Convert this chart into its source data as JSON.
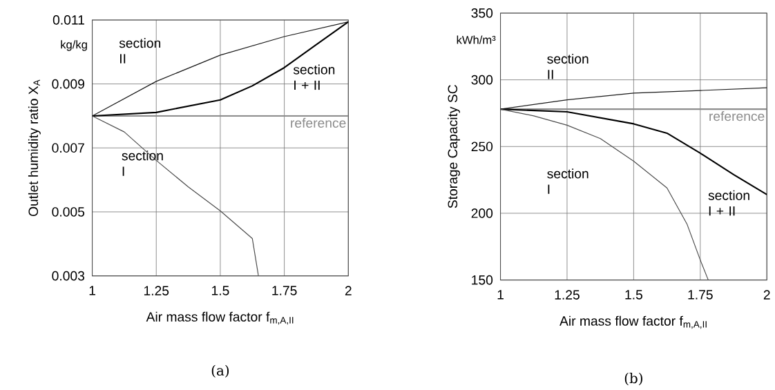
{
  "chart_data": [
    {
      "type": "line",
      "xlabel": "Air mass flow factor f$_{m,A,II}$",
      "ylabel": "Outlet humidity ratio X$_{A}$",
      "annotations": [
        "kg/kg",
        "(a)"
      ],
      "xlim": [
        1,
        2
      ],
      "ylim": [
        0.003,
        0.011
      ],
      "xticks": [
        1,
        1.25,
        1.5,
        1.75,
        2
      ],
      "yticks": [
        0.003,
        0.005,
        0.007,
        0.009,
        0.011
      ],
      "grid": true,
      "line_style": "solid",
      "ref_lines": [
        {
          "axis": "y",
          "value": 0.008,
          "label": "reference",
          "color": "#8c8c8c"
        }
      ],
      "series": [
        {
          "name": "section II",
          "color": "#1a1a1a",
          "x": [
            1,
            1.25,
            1.5,
            1.75,
            2
          ],
          "values": [
            0.008,
            0.00908,
            0.0099,
            0.01048,
            0.01094
          ]
        },
        {
          "name": "section I + II",
          "color": "#000000",
          "x": [
            1,
            1.25,
            1.5,
            1.625,
            1.75,
            1.875,
            2
          ],
          "values": [
            0.008,
            0.00811,
            0.0085,
            0.00894,
            0.00951,
            0.01023,
            0.01094
          ]
        },
        {
          "name": "section I",
          "color": "#4d4d4d",
          "x": [
            1,
            1.125,
            1.25,
            1.375,
            1.5,
            1.625,
            1.649
          ],
          "values": [
            0.008,
            0.0075,
            0.00661,
            0.00578,
            0.00503,
            0.00417,
            0.003
          ]
        }
      ]
    },
    {
      "type": "line",
      "xlabel": "Air mass flow factor f$_{m,A,II}$",
      "ylabel": "Storage Capacity SC",
      "annotations": [
        "kWh/m³",
        "(b)"
      ],
      "xlim": [
        1,
        2
      ],
      "ylim": [
        150,
        350
      ],
      "xticks": [
        1,
        1.25,
        1.5,
        1.75,
        2
      ],
      "yticks": [
        150,
        200,
        250,
        300,
        350
      ],
      "grid": true,
      "line_style": "solid",
      "ref_lines": [
        {
          "axis": "y",
          "value": 278,
          "label": "reference",
          "color": "#8c8c8c"
        }
      ],
      "series": [
        {
          "name": "section II",
          "color": "#1a1a1a",
          "x": [
            1,
            1.25,
            1.5,
            1.75,
            2
          ],
          "values": [
            278,
            285,
            290,
            292,
            294
          ]
        },
        {
          "name": "section I + II",
          "color": "#000000",
          "x": [
            1,
            1.25,
            1.5,
            1.625,
            1.75,
            1.875,
            2
          ],
          "values": [
            278,
            276,
            267,
            260,
            245,
            229,
            214
          ]
        },
        {
          "name": "section I",
          "color": "#4d4d4d",
          "x": [
            1,
            1.125,
            1.25,
            1.375,
            1.5,
            1.625,
            1.7,
            1.75,
            1.78
          ],
          "values": [
            278,
            273,
            266,
            256,
            239,
            219,
            192,
            165,
            150
          ]
        }
      ]
    }
  ]
}
